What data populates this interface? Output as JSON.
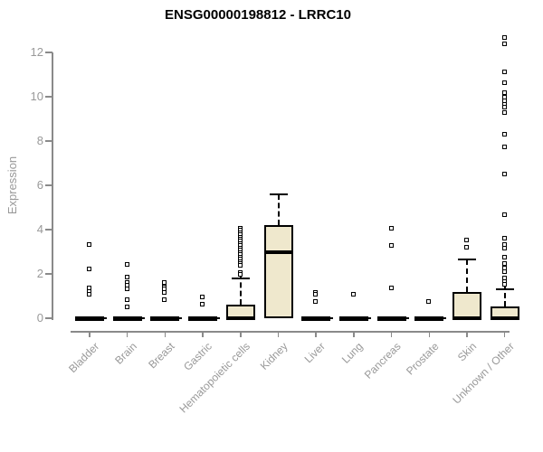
{
  "chart_data": {
    "type": "box",
    "title": "ENSG00000198812 - LRRC10",
    "xlabel": "",
    "ylabel": "Expression",
    "ylim": [
      0,
      12
    ],
    "yticks": [
      0,
      2,
      4,
      6,
      8,
      10,
      12
    ],
    "grid": false,
    "legend": false,
    "categories": [
      "Bladder",
      "Brain",
      "Breast",
      "Gastric",
      "Hematopoietic cells",
      "Kidney",
      "Liver",
      "Lung",
      "Pancreas",
      "Prostate",
      "Skin",
      "Unknown / Other"
    ],
    "boxes": [
      {
        "label": "Bladder",
        "q1": 0,
        "median": 0,
        "q3": 0,
        "whisker_high": 0,
        "outliers": [
          3.3,
          2.2,
          1.35,
          1.2,
          1.05
        ]
      },
      {
        "label": "Brain",
        "q1": 0,
        "median": 0,
        "q3": 0,
        "whisker_high": 0,
        "outliers": [
          2.4,
          1.85,
          1.6,
          1.45,
          1.3,
          0.8,
          0.5
        ]
      },
      {
        "label": "Breast",
        "q1": 0,
        "median": 0,
        "q3": 0,
        "whisker_high": 0,
        "outliers": [
          1.6,
          1.4,
          1.3,
          1.15,
          0.8
        ]
      },
      {
        "label": "Gastric",
        "q1": 0,
        "median": 0,
        "q3": 0,
        "whisker_high": 0,
        "outliers": [
          0.95,
          0.6
        ]
      },
      {
        "label": "Hematopoietic cells",
        "q1": 0,
        "median": 0,
        "q3": 0.6,
        "whisker_high": 1.8,
        "cap_cross": true,
        "outliers": [
          4.05,
          3.95,
          3.85,
          3.75,
          3.65,
          3.55,
          3.45,
          3.35,
          3.25,
          3.15,
          3.05,
          2.95,
          2.85,
          2.75,
          2.65,
          2.55,
          2.45,
          2.35,
          2.05,
          1.95
        ]
      },
      {
        "label": "Kidney",
        "q1": 0,
        "median": 3.0,
        "q3": 4.2,
        "whisker_high": 5.6,
        "outliers": []
      },
      {
        "label": "Liver",
        "q1": 0,
        "median": 0,
        "q3": 0,
        "whisker_high": 0,
        "outliers": [
          1.15,
          1.05,
          0.75
        ]
      },
      {
        "label": "Lung",
        "q1": 0,
        "median": 0,
        "q3": 0,
        "whisker_high": 0,
        "outliers": [
          1.05
        ]
      },
      {
        "label": "Pancreas",
        "q1": 0,
        "median": 0,
        "q3": 0,
        "whisker_high": 0,
        "outliers": [
          4.05,
          3.25,
          1.35
        ]
      },
      {
        "label": "Prostate",
        "q1": 0,
        "median": 0,
        "q3": 0,
        "whisker_high": 0,
        "outliers": [
          0.75
        ]
      },
      {
        "label": "Skin",
        "q1": 0,
        "median": 0,
        "q3": 1.2,
        "whisker_high": 2.65,
        "outliers": [
          3.5,
          3.2
        ]
      },
      {
        "label": "Unknown / Other",
        "q1": 0,
        "median": 0,
        "q3": 0.55,
        "whisker_high": 1.3,
        "cap_cross": true,
        "outliers": [
          12.65,
          12.35,
          11.1,
          10.6,
          10.15,
          9.95,
          9.8,
          9.65,
          9.5,
          9.25,
          8.3,
          7.7,
          6.5,
          4.65,
          3.6,
          3.3,
          3.15,
          2.75,
          2.45,
          2.25,
          2.1,
          1.8,
          1.65,
          1.5
        ]
      }
    ],
    "colors": {
      "box_fill": "#EFE8CD",
      "box_border": "#000000",
      "median": "#000000",
      "axis": "#8a8a8a",
      "tick_label": "#999999",
      "title": "#000000",
      "background": "#ffffff"
    }
  }
}
